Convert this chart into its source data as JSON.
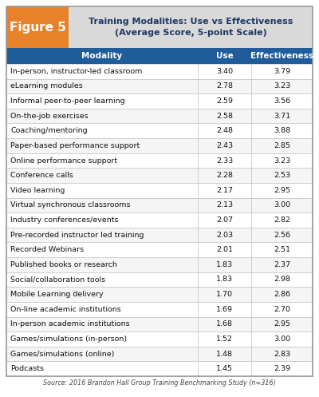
{
  "figure_label": "Figure 5",
  "title_line1": "Training Modalities: Use vs Effectiveness",
  "title_line2": "(Average Score, 5-point Scale)",
  "header": [
    "Modality",
    "Use",
    "Effectiveness"
  ],
  "rows": [
    [
      "In-person, instructor-led classroom",
      "3.40",
      "3.79"
    ],
    [
      "eLearning modules",
      "2.78",
      "3.23"
    ],
    [
      "Informal peer-to-peer learning",
      "2.59",
      "3.56"
    ],
    [
      "On-the-job exercises",
      "2.58",
      "3.71"
    ],
    [
      "Coaching/mentoring",
      "2.48",
      "3.88"
    ],
    [
      "Paper-based performance support",
      "2.43",
      "2.85"
    ],
    [
      "Online performance support",
      "2.33",
      "3.23"
    ],
    [
      "Conference calls",
      "2.28",
      "2.53"
    ],
    [
      "Video learning",
      "2.17",
      "2.95"
    ],
    [
      "Virtual synchronous classrooms",
      "2.13",
      "3.00"
    ],
    [
      "Industry conferences/events",
      "2.07",
      "2.82"
    ],
    [
      "Pre-recorded instructor led training",
      "2.03",
      "2.56"
    ],
    [
      "Recorded Webinars",
      "2.01",
      "2.51"
    ],
    [
      "Published books or research",
      "1.83",
      "2.37"
    ],
    [
      "Social/collaboration tools",
      "1.83",
      "2.98"
    ],
    [
      "Mobile Learning delivery",
      "1.70",
      "2.86"
    ],
    [
      "On-line academic institutions",
      "1.69",
      "2.70"
    ],
    [
      "In-person academic institutions",
      "1.68",
      "2.95"
    ],
    [
      "Games/simulations (in-person)",
      "1.52",
      "3.00"
    ],
    [
      "Games/simulations (online)",
      "1.48",
      "2.83"
    ],
    [
      "Podcasts",
      "1.45",
      "2.39"
    ]
  ],
  "source_text": "Source: 2016 Brandon Hall Group Training Benchmarking Study (n=316)",
  "header_bg": "#1F5C99",
  "header_text_color": "#FFFFFF",
  "figure_label_bg": "#E8822A",
  "figure_label_text_color": "#FFFFFF",
  "title_bg": "#D9D9D9",
  "title_text_color": "#1F3864",
  "border_color": "#BBBBBB",
  "outer_border_color": "#999999",
  "row_alt_bg": "#F5F5F5"
}
